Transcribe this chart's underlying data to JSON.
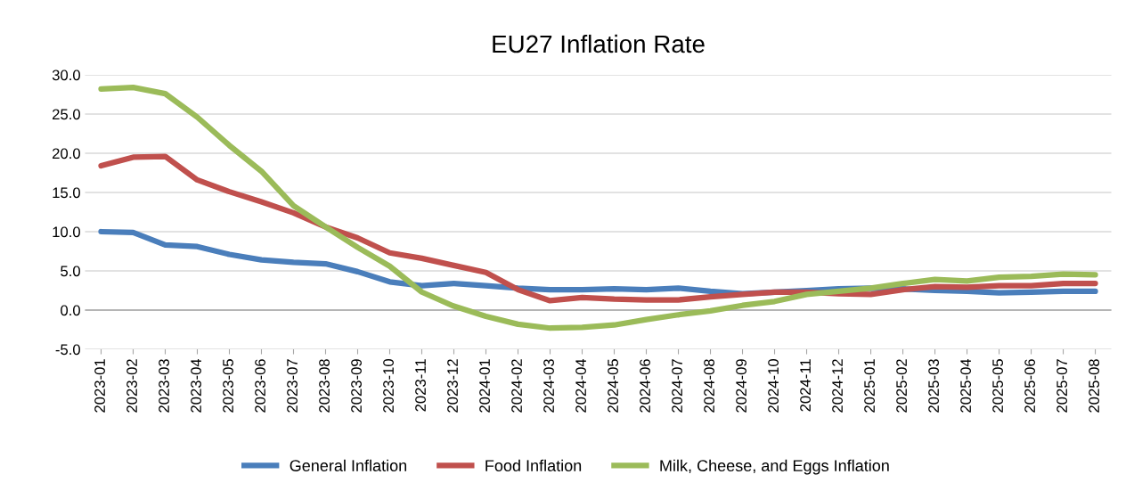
{
  "chart_data": {
    "type": "line",
    "title": "EU27 Inflation Rate",
    "categories": [
      "2023-01",
      "2023-02",
      "2023-03",
      "2023-04",
      "2023-05",
      "2023-06",
      "2023-07",
      "2023-08",
      "2023-09",
      "2023-10",
      "2023-11",
      "2023-12",
      "2024-01",
      "2024-02",
      "2024-03",
      "2024-04",
      "2024-05",
      "2024-06",
      "2024-07",
      "2024-08",
      "2024-09",
      "2024-10",
      "2024-11",
      "2024-12",
      "2025-01",
      "2025-02",
      "2025-03",
      "2025-04",
      "2025-05",
      "2025-06",
      "2025-07",
      "2025-08"
    ],
    "series": [
      {
        "name": "General Inflation",
        "color": "#4a7ebb",
        "values": [
          10.0,
          9.9,
          8.3,
          8.1,
          7.1,
          6.4,
          6.1,
          5.9,
          4.9,
          3.6,
          3.1,
          3.4,
          3.1,
          2.8,
          2.6,
          2.6,
          2.7,
          2.6,
          2.8,
          2.4,
          2.1,
          2.3,
          2.5,
          2.7,
          2.8,
          2.7,
          2.5,
          2.4,
          2.2,
          2.3,
          2.4,
          2.4
        ]
      },
      {
        "name": "Food Inflation",
        "color": "#c0504d",
        "values": [
          18.4,
          19.5,
          19.6,
          16.6,
          15.1,
          13.8,
          12.4,
          10.6,
          9.2,
          7.3,
          6.6,
          5.7,
          4.8,
          2.6,
          1.2,
          1.6,
          1.4,
          1.3,
          1.3,
          1.7,
          2.0,
          2.3,
          2.3,
          2.1,
          2.0,
          2.6,
          3.0,
          2.9,
          3.1,
          3.1,
          3.4,
          3.4
        ]
      },
      {
        "name": "Milk, Cheese, and Eggs Inflation",
        "color": "#9bbb59",
        "values": [
          28.2,
          28.4,
          27.6,
          24.6,
          21.0,
          17.7,
          13.3,
          10.6,
          8.0,
          5.6,
          2.3,
          0.5,
          -0.8,
          -1.8,
          -2.3,
          -2.2,
          -1.9,
          -1.2,
          -0.6,
          -0.1,
          0.6,
          1.1,
          2.0,
          2.4,
          2.8,
          3.4,
          3.9,
          3.7,
          4.2,
          4.3,
          4.6,
          4.5
        ]
      }
    ],
    "ylim": [
      -5,
      30
    ],
    "yticks": [
      {
        "value": -5,
        "label": "-5.0"
      },
      {
        "value": 0,
        "label": "0.0"
      },
      {
        "value": 5,
        "label": "5.0"
      },
      {
        "value": 10,
        "label": "10.0"
      },
      {
        "value": 15,
        "label": "15.0"
      },
      {
        "value": 20,
        "label": "20.0"
      },
      {
        "value": 25,
        "label": "25.0"
      },
      {
        "value": 30,
        "label": "30.0"
      }
    ],
    "grid": "y",
    "legend": "bottom",
    "marker": "none",
    "line_style": "solid"
  }
}
